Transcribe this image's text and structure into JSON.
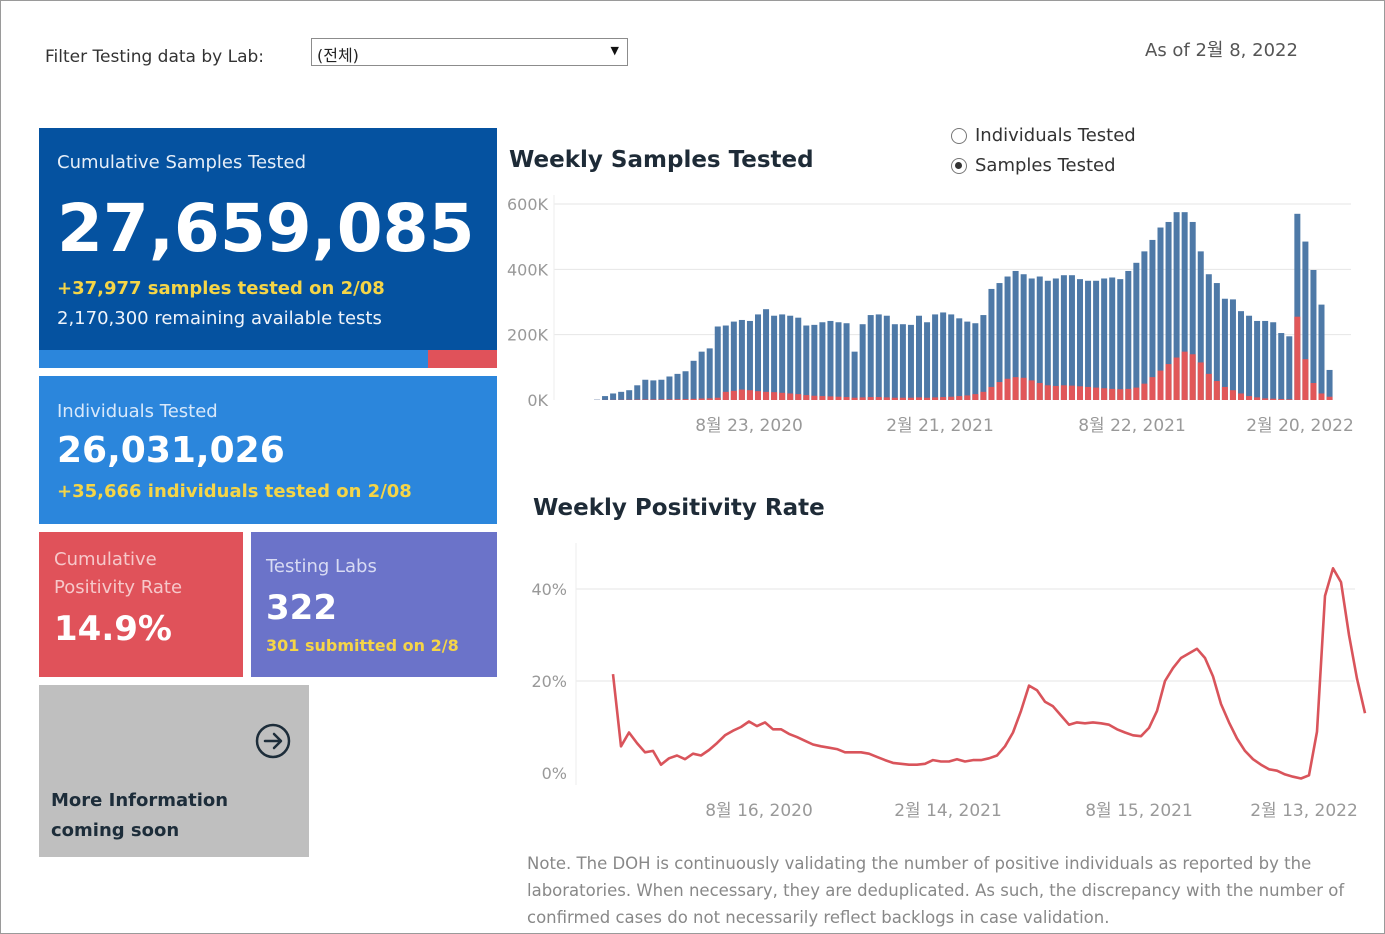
{
  "filter": {
    "label": "Filter Testing data by Lab:",
    "value": "(전체)"
  },
  "as_of": "As of 2월 8, 2022",
  "cards": {
    "samples": {
      "title": "Cumulative Samples Tested",
      "value": "27,659,085",
      "delta": "+37,977 samples tested on 2/08",
      "remaining": "2,170,300 remaining available tests",
      "used_fraction": 0.85
    },
    "individuals": {
      "title": "Individuals Tested",
      "value": "26,031,026",
      "delta": "+35,666  individuals  tested on 2/08"
    },
    "positivity": {
      "title_line1": "Cumulative",
      "title_line2": "Positivity Rate",
      "value": "14.9%"
    },
    "labs": {
      "title": "Testing Labs",
      "value": "322",
      "submitted": "301 submitted on 2/8"
    },
    "more": {
      "line1": "More Information",
      "line2": "coming soon"
    }
  },
  "toggle": {
    "options": [
      "Individuals Tested",
      "Samples Tested"
    ],
    "selected": 1
  },
  "colors": {
    "samples_bar": "#4e79a7",
    "positive_bar": "#e15759",
    "positivity_line": "#d9545b",
    "card_samples": "#0552a0",
    "card_individuals": "#2b86dc",
    "card_positivity": "#e0525a",
    "card_labs": "#6b73c9"
  },
  "chart_data": [
    {
      "type": "bar",
      "title": "Weekly Samples Tested",
      "x_tick_labels": [
        "8월 23, 2020",
        "2월 21, 2021",
        "8월 22, 2021",
        "2월 20, 2022"
      ],
      "y_tick_labels": [
        "600K",
        "400K",
        "200K",
        "0K"
      ],
      "y_ticks": [
        600000,
        400000,
        200000,
        0
      ],
      "ylim": [
        0,
        600000
      ],
      "grid": true,
      "series": [
        {
          "values": [
            1000,
            12000,
            20000,
            25000,
            30000,
            45000,
            62000,
            60000,
            62000,
            72000,
            80000,
            88000,
            120000,
            148000,
            158000,
            225000,
            228000,
            240000,
            245000,
            242000,
            262000,
            278000,
            258000,
            262000,
            258000,
            252000,
            228000,
            230000,
            238000,
            242000,
            238000,
            235000,
            148000,
            232000,
            260000,
            262000,
            258000,
            232000,
            232000,
            230000,
            258000,
            238000,
            262000,
            268000,
            262000,
            250000,
            240000,
            235000,
            260000,
            340000,
            358000,
            378000,
            395000,
            385000,
            372000,
            378000,
            365000,
            372000,
            382000,
            382000,
            370000,
            365000,
            365000,
            372000,
            375000,
            370000,
            395000,
            420000,
            455000,
            490000,
            528000,
            545000,
            575000,
            575000,
            545000,
            455000,
            385000,
            358000,
            310000,
            308000,
            272000,
            258000,
            242000,
            242000,
            238000,
            205000,
            195000,
            570000,
            485000,
            398000,
            292000,
            92000
          ]
        },
        {
          "values": [
            100,
            300,
            500,
            700,
            900,
            1200,
            1500,
            1600,
            1800,
            2000,
            2300,
            2600,
            3500,
            4500,
            5000,
            7000,
            25000,
            28000,
            32000,
            30000,
            27000,
            25000,
            24000,
            22000,
            20000,
            18000,
            15000,
            13000,
            12000,
            11000,
            10000,
            9000,
            7000,
            8000,
            9000,
            9000,
            8000,
            7000,
            7000,
            7000,
            8000,
            7000,
            8000,
            9000,
            10000,
            12000,
            14000,
            18000,
            25000,
            40000,
            55000,
            65000,
            70000,
            68000,
            60000,
            52000,
            45000,
            43000,
            45000,
            44000,
            42000,
            40000,
            38000,
            36000,
            34000,
            33000,
            34000,
            38000,
            50000,
            70000,
            90000,
            110000,
            130000,
            148000,
            140000,
            115000,
            80000,
            58000,
            40000,
            30000,
            20000,
            12000,
            8000,
            5000,
            4000,
            3000,
            2000,
            255000,
            125000,
            52000,
            20000,
            10000
          ]
        }
      ]
    },
    {
      "type": "line",
      "title": "Weekly Positivity Rate",
      "x_tick_labels": [
        "8월 16, 2020",
        "2월 14, 2021",
        "8월 15, 2021",
        "2월 13, 2022"
      ],
      "y_tick_labels": [
        "40%",
        "20%",
        "0%"
      ],
      "y_ticks": [
        40,
        20,
        0
      ],
      "ylim": [
        0,
        40
      ],
      "grid": true,
      "series": [
        {
          "values": [
            21.5,
            5.8,
            8.8,
            6.5,
            4.5,
            4.8,
            1.8,
            3.2,
            3.8,
            3.0,
            4.2,
            3.8,
            5.0,
            6.5,
            8.2,
            9.2,
            10.0,
            11.2,
            10.2,
            11.0,
            9.5,
            9.5,
            8.5,
            7.8,
            7.0,
            6.2,
            5.8,
            5.5,
            5.2,
            4.5,
            4.5,
            4.5,
            4.2,
            3.5,
            2.8,
            2.2,
            2.0,
            1.8,
            1.8,
            2.0,
            2.8,
            2.5,
            2.5,
            3.0,
            2.5,
            2.8,
            2.8,
            3.2,
            3.8,
            5.8,
            8.8,
            13.5,
            19.0,
            18.0,
            15.5,
            14.5,
            12.5,
            10.5,
            11.0,
            10.8,
            11.0,
            10.8,
            10.5,
            9.5,
            8.8,
            8.2,
            8.0,
            9.8,
            13.5,
            20.0,
            22.8,
            25.0,
            26.0,
            27.0,
            25.0,
            21.0,
            15.0,
            11.0,
            7.5,
            4.8,
            3.0,
            1.8,
            0.8,
            0.5,
            -0.3,
            -0.8,
            -1.2,
            -0.5,
            9.0,
            38.5,
            44.5,
            41.5,
            30.0,
            20.5,
            13.0
          ]
        }
      ]
    }
  ],
  "note": "Note. The DOH is continuously validating the number of positive individuals as reported by the laboratories. When necessary, they are deduplicated. As such, the discrepancy with the number of confirmed cases do not necessarily reflect backlogs in case validation."
}
